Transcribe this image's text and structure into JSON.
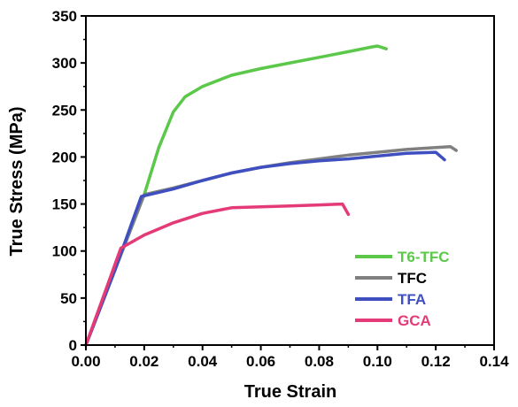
{
  "chart_data": {
    "type": "line",
    "title": "",
    "xlabel": "True Strain",
    "ylabel": "True Stress (MPa)",
    "xlim": [
      0.0,
      0.14
    ],
    "ylim": [
      0,
      350
    ],
    "x_ticks": [
      "0.00",
      "0.02",
      "0.04",
      "0.06",
      "0.08",
      "0.10",
      "0.12",
      "0.14"
    ],
    "y_ticks": [
      "0",
      "50",
      "100",
      "150",
      "200",
      "250",
      "300",
      "350"
    ],
    "grid": false,
    "legend_position": "bottom-right",
    "series": [
      {
        "name": "T6-TFC",
        "color": "#5BC84A",
        "x": [
          0.0,
          0.01,
          0.02,
          0.025,
          0.03,
          0.034,
          0.04,
          0.05,
          0.06,
          0.07,
          0.08,
          0.09,
          0.098,
          0.1,
          0.103
        ],
        "y": [
          0,
          80,
          160,
          210,
          248,
          264,
          275,
          287,
          294,
          300,
          306,
          312,
          317,
          318,
          315
        ]
      },
      {
        "name": "TFC",
        "color": "#808080",
        "x": [
          0.0,
          0.01,
          0.02,
          0.03,
          0.04,
          0.05,
          0.06,
          0.07,
          0.08,
          0.09,
          0.1,
          0.11,
          0.12,
          0.125,
          0.127
        ],
        "y": [
          0,
          80,
          160,
          167,
          175,
          183,
          189,
          194,
          198,
          202,
          205,
          208,
          210,
          211,
          207
        ]
      },
      {
        "name": "TFA",
        "color": "#3F4FC0",
        "x": [
          0.0,
          0.01,
          0.019,
          0.03,
          0.04,
          0.05,
          0.06,
          0.07,
          0.08,
          0.09,
          0.1,
          0.11,
          0.12,
          0.123
        ],
        "y": [
          0,
          80,
          158,
          166,
          175,
          183,
          189,
          193,
          196,
          198,
          201,
          204,
          205,
          197
        ]
      },
      {
        "name": "GCA",
        "color": "#E53A78",
        "x": [
          0.0,
          0.012,
          0.02,
          0.03,
          0.04,
          0.05,
          0.06,
          0.07,
          0.08,
          0.088,
          0.09
        ],
        "y": [
          0,
          103,
          117,
          130,
          140,
          146,
          147,
          148,
          149,
          150,
          139
        ]
      }
    ]
  }
}
